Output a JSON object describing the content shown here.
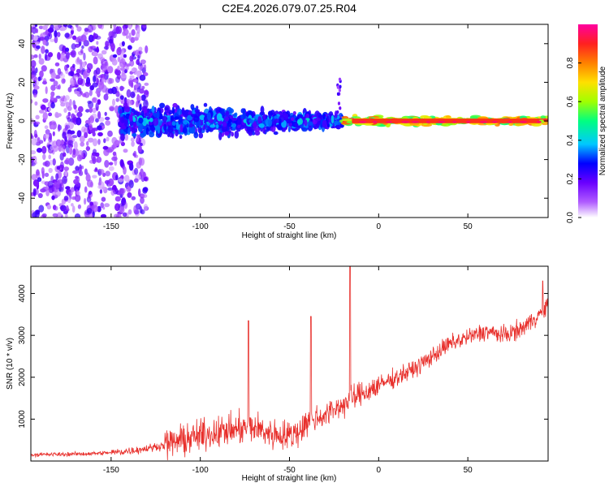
{
  "title": "C2E4.2026.079.07.25.R04",
  "chart_data": [
    {
      "type": "heatmap",
      "xlabel": "Height of straight line (km)",
      "ylabel": "Frequency (Hz)",
      "xlim": [
        -195,
        95
      ],
      "ylim": [
        -50,
        50
      ],
      "xticks": [
        -150,
        -100,
        -50,
        0,
        50
      ],
      "yticks": [
        40,
        20,
        0,
        -20,
        -40
      ],
      "colorbar": {
        "label": "Normalized spectral amplitude",
        "range": [
          0.0,
          1.0
        ],
        "ticks": [
          0.0,
          0.2,
          0.4,
          0.6,
          0.8
        ],
        "colormap": [
          "#ffffff",
          "#b05cff",
          "#6a00ff",
          "#0000ff",
          "#00c8ff",
          "#00ff80",
          "#a0ff00",
          "#ffe000",
          "#ff8000",
          "#ff2020",
          "#ff00a0"
        ]
      },
      "description_bands": [
        {
          "x": [
            -195,
            -130
          ],
          "freq_spread": 50,
          "amplitude": [
            0.05,
            0.25
          ]
        },
        {
          "x": [
            -145,
            -20
          ],
          "freq_spread": 12,
          "amplitude": [
            0.2,
            0.45
          ]
        },
        {
          "x": [
            -20,
            95
          ],
          "freq_spread": 3,
          "amplitude": [
            0.5,
            1.0
          ]
        }
      ]
    },
    {
      "type": "line",
      "xlabel": "Height of straight line (km)",
      "ylabel": "SNR (10 * v/v)",
      "xlim": [
        -195,
        95
      ],
      "ylim": [
        0,
        4650
      ],
      "xticks": [
        -150,
        -100,
        -50,
        0,
        50
      ],
      "yticks": [
        1000,
        2000,
        3000,
        4000
      ],
      "color": "#e8302c",
      "series": [
        {
          "x": [
            -195,
            -180,
            -165,
            -150,
            -140,
            -130,
            -120,
            -110,
            -100,
            -90,
            -80,
            -70,
            -60,
            -50,
            -45,
            -40,
            -30,
            -20,
            -10,
            0,
            10,
            20,
            30,
            40,
            50,
            60,
            70,
            80,
            90,
            95
          ],
          "values": [
            150,
            160,
            170,
            200,
            240,
            300,
            380,
            500,
            600,
            700,
            750,
            800,
            650,
            600,
            700,
            950,
            1100,
            1350,
            1600,
            1800,
            2000,
            2200,
            2500,
            2800,
            2950,
            3100,
            3000,
            3150,
            3500,
            3700
          ]
        }
      ],
      "peaks": [
        {
          "x": -73,
          "y": 3350
        },
        {
          "x": -38,
          "y": 3450
        },
        {
          "x": -16,
          "y": 4650
        },
        {
          "x": 92,
          "y": 4300
        }
      ]
    }
  ]
}
